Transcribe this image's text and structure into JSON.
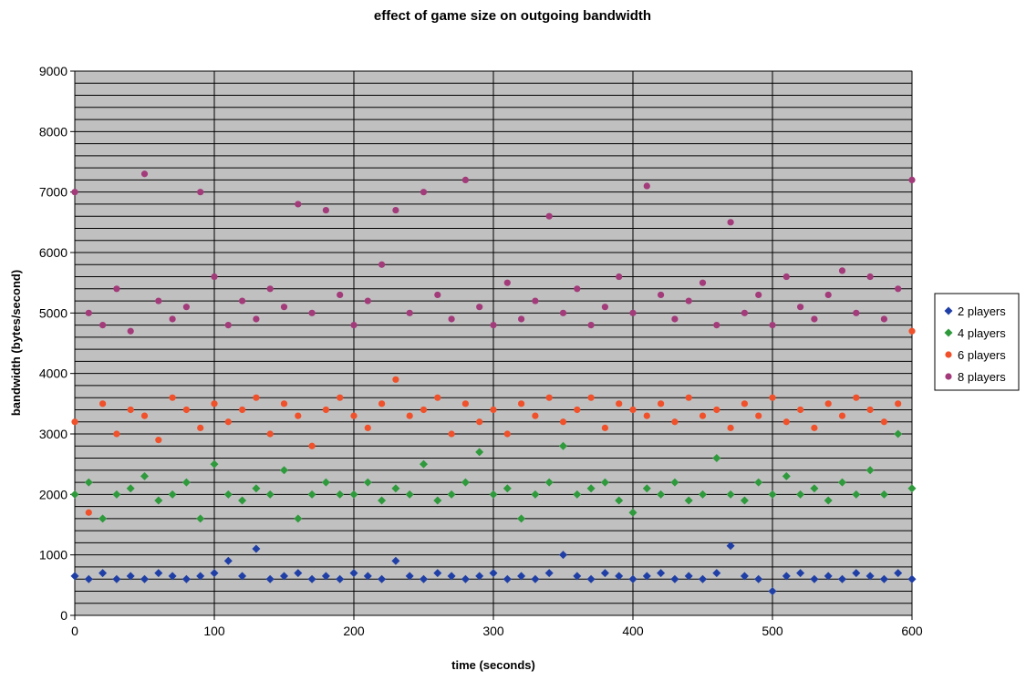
{
  "chart_data": {
    "type": "scatter",
    "title": "effect of game size on outgoing bandwidth",
    "xlabel": "time (seconds)",
    "ylabel": "bandwidth (bytes/second)",
    "xlim": [
      0,
      600
    ],
    "ylim": [
      0,
      9000
    ],
    "x_ticks": [
      0,
      100,
      200,
      300,
      400,
      500,
      600
    ],
    "y_ticks": [
      0,
      1000,
      2000,
      3000,
      4000,
      5000,
      6000,
      7000,
      8000,
      9000
    ],
    "x_tick_labels": [
      "0",
      "100",
      "200",
      "300",
      "400",
      "500",
      "600"
    ],
    "y_tick_labels": [
      "0",
      "1000",
      "2000",
      "3000",
      "4000",
      "5000",
      "6000",
      "7000",
      "8000",
      "9000"
    ],
    "grid": true,
    "background_color": "#c0c0c0",
    "legend_position": "right",
    "series": [
      {
        "name": "2 players",
        "color": "#1f3fa6",
        "marker": "diamond",
        "x": [
          0,
          10,
          20,
          30,
          40,
          50,
          60,
          70,
          80,
          90,
          100,
          110,
          120,
          130,
          140,
          150,
          160,
          170,
          180,
          190,
          200,
          210,
          220,
          230,
          240,
          250,
          260,
          270,
          280,
          290,
          300,
          310,
          320,
          330,
          340,
          350,
          360,
          370,
          380,
          390,
          400,
          410,
          420,
          430,
          440,
          450,
          460,
          470,
          480,
          490,
          500,
          510,
          520,
          530,
          540,
          550,
          560,
          570,
          580,
          590,
          600
        ],
        "y": [
          650,
          600,
          700,
          600,
          650,
          600,
          700,
          650,
          600,
          650,
          700,
          900,
          650,
          1100,
          600,
          650,
          700,
          600,
          650,
          600,
          700,
          650,
          600,
          900,
          650,
          600,
          700,
          650,
          600,
          650,
          700,
          600,
          650,
          600,
          700,
          1000,
          650,
          600,
          700,
          650,
          600,
          650,
          700,
          600,
          650,
          600,
          700,
          1150,
          650,
          600,
          400,
          650,
          700,
          600,
          650,
          600,
          700,
          650,
          600,
          700,
          600
        ]
      },
      {
        "name": "4 players",
        "color": "#2e9a3c",
        "marker": "diamond",
        "x": [
          0,
          10,
          20,
          30,
          40,
          50,
          60,
          70,
          80,
          90,
          100,
          110,
          120,
          130,
          140,
          150,
          160,
          170,
          180,
          190,
          200,
          210,
          220,
          230,
          240,
          250,
          260,
          270,
          280,
          290,
          300,
          310,
          320,
          330,
          340,
          350,
          360,
          370,
          380,
          390,
          400,
          410,
          420,
          430,
          440,
          450,
          460,
          470,
          480,
          490,
          500,
          510,
          520,
          530,
          540,
          550,
          560,
          570,
          580,
          590,
          600
        ],
        "y": [
          2000,
          2200,
          1600,
          2000,
          2100,
          2300,
          1900,
          2000,
          2200,
          1600,
          2500,
          2000,
          1900,
          2100,
          2000,
          2400,
          1600,
          2000,
          2200,
          2000,
          2000,
          2200,
          1900,
          2100,
          2000,
          2500,
          1900,
          2000,
          2200,
          2700,
          2000,
          2100,
          1600,
          2000,
          2200,
          2800,
          2000,
          2100,
          2200,
          1900,
          1700,
          2100,
          2000,
          2200,
          1900,
          2000,
          2600,
          2000,
          1900,
          2200,
          2000,
          2300,
          2000,
          2100,
          1900,
          2200,
          2000,
          2400,
          2000,
          3000,
          2100
        ]
      },
      {
        "name": "6 players",
        "color": "#f0502a",
        "marker": "circle",
        "x": [
          0,
          10,
          20,
          30,
          40,
          50,
          60,
          70,
          80,
          90,
          100,
          110,
          120,
          130,
          140,
          150,
          160,
          170,
          180,
          190,
          200,
          210,
          220,
          230,
          240,
          250,
          260,
          270,
          280,
          290,
          300,
          310,
          320,
          330,
          340,
          350,
          360,
          370,
          380,
          390,
          400,
          410,
          420,
          430,
          440,
          450,
          460,
          470,
          480,
          490,
          500,
          510,
          520,
          530,
          540,
          550,
          560,
          570,
          580,
          590,
          600
        ],
        "y": [
          3200,
          1700,
          3500,
          3000,
          3400,
          3300,
          2900,
          3600,
          3400,
          3100,
          3500,
          3200,
          3400,
          3600,
          3000,
          3500,
          3300,
          2800,
          3400,
          3600,
          3300,
          3100,
          3500,
          3900,
          3300,
          3400,
          3600,
          3000,
          3500,
          3200,
          3400,
          3000,
          3500,
          3300,
          3600,
          3200,
          3400,
          3600,
          3100,
          3500,
          3400,
          3300,
          3500,
          3200,
          3600,
          3300,
          3400,
          3100,
          3500,
          3300,
          3600,
          3200,
          3400,
          3100,
          3500,
          3300,
          3600,
          3400,
          3200,
          3500,
          4700
        ]
      },
      {
        "name": "8 players",
        "color": "#a33a7a",
        "marker": "circle",
        "x": [
          0,
          10,
          20,
          30,
          40,
          50,
          60,
          70,
          80,
          90,
          100,
          110,
          120,
          130,
          140,
          150,
          160,
          170,
          180,
          190,
          200,
          210,
          220,
          230,
          240,
          250,
          260,
          270,
          280,
          290,
          300,
          310,
          320,
          330,
          340,
          350,
          360,
          370,
          380,
          390,
          400,
          410,
          420,
          430,
          440,
          450,
          460,
          470,
          480,
          490,
          500,
          510,
          520,
          530,
          540,
          550,
          560,
          570,
          580,
          590,
          600
        ],
        "y": [
          7000,
          5000,
          4800,
          5400,
          4700,
          7300,
          5200,
          4900,
          5100,
          7000,
          5600,
          4800,
          5200,
          4900,
          5400,
          5100,
          6800,
          5000,
          6700,
          5300,
          4800,
          5200,
          5800,
          6700,
          5000,
          7000,
          5300,
          4900,
          7200,
          5100,
          4800,
          5500,
          4900,
          5200,
          6600,
          5000,
          5400,
          4800,
          5100,
          5600,
          5000,
          7100,
          5300,
          4900,
          5200,
          5500,
          4800,
          6500,
          5000,
          5300,
          4800,
          5600,
          5100,
          4900,
          5300,
          5700,
          5000,
          5600,
          4900,
          5400,
          7200
        ]
      }
    ]
  }
}
